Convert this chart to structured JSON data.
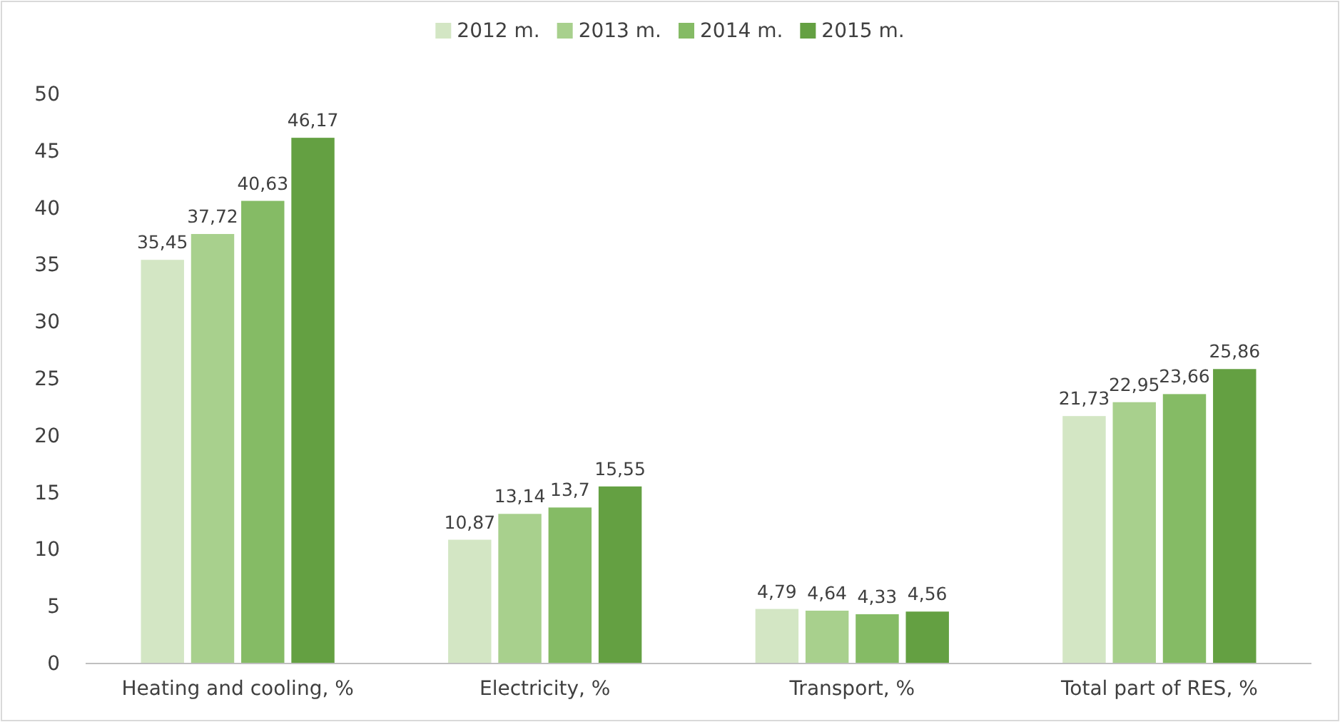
{
  "chart_data": {
    "type": "bar",
    "categories": [
      "Heating and cooling, %",
      "Electricity, %",
      "Transport, %",
      "Total part of RES, %"
    ],
    "series": [
      {
        "name": "2012 m.",
        "color": "#d3e6c4",
        "values": [
          35.45,
          10.87,
          4.79,
          21.73
        ],
        "value_labels": [
          "35,45",
          "10,87",
          "4,79",
          "21,73"
        ]
      },
      {
        "name": "2013 m.",
        "color": "#a8d08d",
        "values": [
          37.72,
          13.14,
          4.64,
          22.95
        ],
        "value_labels": [
          "37,72",
          "13,14",
          "4,64",
          "22,95"
        ]
      },
      {
        "name": "2014 m.",
        "color": "#85bb65",
        "values": [
          40.63,
          13.7,
          4.33,
          23.66
        ],
        "value_labels": [
          "40,63",
          "13,7",
          "4,33",
          "23,66"
        ]
      },
      {
        "name": "2015 m.",
        "color": "#64a042",
        "values": [
          46.17,
          15.55,
          4.56,
          25.86
        ],
        "value_labels": [
          "46,17",
          "15,55",
          "4,56",
          "25,86"
        ]
      }
    ],
    "ylim": [
      0,
      50
    ],
    "yticks": [
      0,
      5,
      10,
      15,
      20,
      25,
      30,
      35,
      40,
      45,
      50
    ],
    "grid": false,
    "legend": "top"
  }
}
